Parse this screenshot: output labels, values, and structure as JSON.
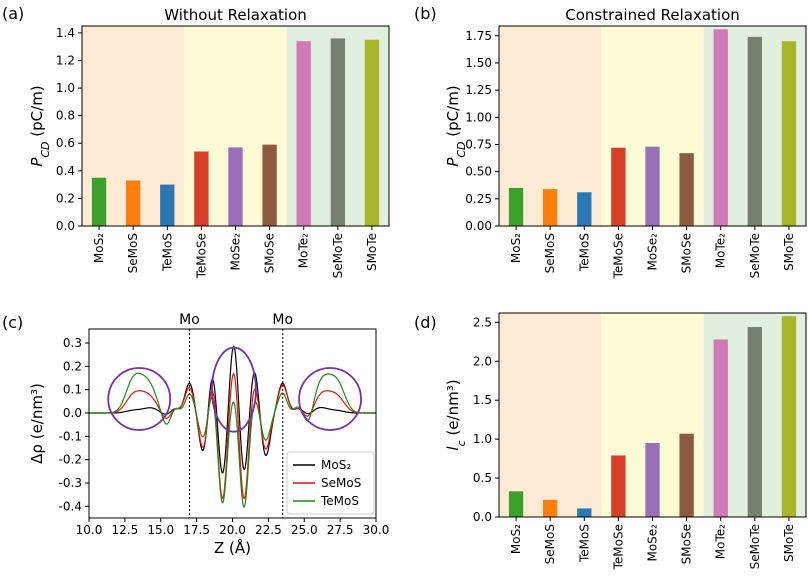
{
  "colors": {
    "MoS2": "#3ca02c",
    "SeMoS": "#ff7f0e",
    "TeMoS": "#2c77b4",
    "TeMoSe": "#d63e27",
    "MoSe2": "#9a6fba",
    "SMoSe": "#8c5a3f",
    "MoTe2": "#d17bb6",
    "SeMoTe": "#76806f",
    "SMoTe": "#a7b52a",
    "shade_orange": "#fdebd6",
    "shade_yellow": "#fdfbd6",
    "shade_green": "#e1efdf",
    "circle": "#7b2fa8"
  },
  "chart_data": [
    {
      "panel": "(a)",
      "type": "bar",
      "title": "Without Relaxation",
      "ylabel": "P_CD (pC/m)",
      "categories": [
        "MoS2",
        "SeMoS",
        "TeMoS",
        "TeMoSe",
        "MoSe2",
        "SMoSe",
        "MoTe2",
        "SeMoTe",
        "SMoTe"
      ],
      "category_labels": [
        "MoS₂",
        "SeMoS",
        "TeMoS",
        "TeMoSe",
        "MoSe₂",
        "SMoSe",
        "MoTe₂",
        "SeMoTe",
        "SMoTe"
      ],
      "values": [
        0.35,
        0.33,
        0.3,
        0.54,
        0.57,
        0.59,
        1.34,
        1.36,
        1.35
      ],
      "ylim": [
        0,
        1.45
      ],
      "yticks": [
        "0.0",
        "0.2",
        "0.4",
        "0.6",
        "0.8",
        "1.0",
        "1.2",
        "1.4"
      ],
      "shading": [
        "orange",
        "yellow",
        "green"
      ]
    },
    {
      "panel": "(b)",
      "type": "bar",
      "title": "Constrained Relaxation",
      "ylabel": "P_CD (pC/m)",
      "categories": [
        "MoS2",
        "SeMoS",
        "TeMoS",
        "TeMoSe",
        "MoSe2",
        "SMoSe",
        "MoTe2",
        "SeMoTe",
        "SMoTe"
      ],
      "category_labels": [
        "MoS₂",
        "SeMoS",
        "TeMoS",
        "TeMoSe",
        "MoSe₂",
        "SMoSe",
        "MoTe₂",
        "SeMoTe",
        "SMoTe"
      ],
      "values": [
        0.35,
        0.34,
        0.31,
        0.72,
        0.73,
        0.67,
        1.81,
        1.74,
        1.7
      ],
      "ylim": [
        0,
        1.84
      ],
      "yticks": [
        "0.00",
        "0.25",
        "0.50",
        "0.75",
        "1.00",
        "1.25",
        "1.50",
        "1.75"
      ],
      "shading": [
        "orange",
        "yellow",
        "green"
      ]
    },
    {
      "panel": "(c)",
      "type": "line",
      "xlabel": "Z (Å)",
      "ylabel": "Δρ (e/nm³)",
      "xlim": [
        10,
        30
      ],
      "ylim": [
        -0.45,
        0.36
      ],
      "xticks": [
        "10.0",
        "12.5",
        "15.0",
        "17.5",
        "20.0",
        "22.5",
        "25.0",
        "27.5",
        "30.0"
      ],
      "yticks": [
        "-0.4",
        "-0.3",
        "-0.2",
        "-0.1",
        "0.0",
        "0.1",
        "0.2",
        "0.3"
      ],
      "annotations": [
        "Mo",
        "Mo"
      ],
      "vlines": [
        17.0,
        23.5
      ],
      "legend": "bottom-right",
      "series": [
        {
          "name": "MoS₂",
          "color": "#000000",
          "amps": [
            0.004,
            0.012,
            0.016,
            -0.01,
            0.02,
            -0.005,
            0.13,
            -0.19,
            0.205,
            -0.29,
            0.325,
            -0.29,
            0.205,
            -0.19,
            0.13,
            -0.005,
            0.02,
            -0.01,
            0.016,
            0.012,
            0.004
          ]
        },
        {
          "name": "SeMoS",
          "color": "#e8150c",
          "amps": [
            0.03,
            0.08,
            0.03,
            -0.03,
            0.02,
            0.0,
            0.11,
            -0.17,
            0.16,
            -0.39,
            0.22,
            -0.4,
            0.14,
            -0.16,
            0.12,
            0.0,
            0.02,
            -0.03,
            0.03,
            0.08,
            0.03
          ]
        },
        {
          "name": "TeMoS",
          "color": "#1c8a1c",
          "amps": [
            0.06,
            0.14,
            0.05,
            -0.06,
            0.03,
            -0.01,
            0.085,
            -0.12,
            0.12,
            -0.4,
            0.1,
            -0.42,
            0.08,
            -0.12,
            0.09,
            -0.01,
            0.03,
            -0.06,
            0.05,
            0.14,
            0.06
          ]
        }
      ],
      "centers": [
        12.9,
        13.6,
        14.4,
        15.4,
        16.0,
        16.5,
        17.0,
        18.0,
        18.6,
        19.3,
        20.1,
        20.8,
        21.5,
        22.3,
        23.5,
        23.9,
        24.6,
        25.3,
        26.0,
        26.7,
        27.5
      ]
    },
    {
      "panel": "(d)",
      "type": "bar",
      "ylabel": "l_c (e/nm³)",
      "categories": [
        "MoS2",
        "SeMoS",
        "TeMoS",
        "TeMoSe",
        "MoSe2",
        "SMoSe",
        "MoTe2",
        "SeMoTe",
        "SMoTe"
      ],
      "category_labels": [
        "MoS₂",
        "SeMoS",
        "TeMoS",
        "TeMoSe",
        "MoSe₂",
        "SMoSe",
        "MoTe₂",
        "SeMoTe",
        "SMoTe"
      ],
      "values": [
        0.33,
        0.22,
        0.11,
        0.79,
        0.95,
        1.07,
        2.28,
        2.44,
        2.58
      ],
      "ylim": [
        0,
        2.62
      ],
      "yticks": [
        "0.0",
        "0.5",
        "1.0",
        "1.5",
        "2.0",
        "2.5"
      ],
      "shading": [
        "orange",
        "yellow",
        "green"
      ]
    }
  ],
  "panel_labels": [
    "(a)",
    "(b)",
    "(c)",
    "(d)"
  ]
}
